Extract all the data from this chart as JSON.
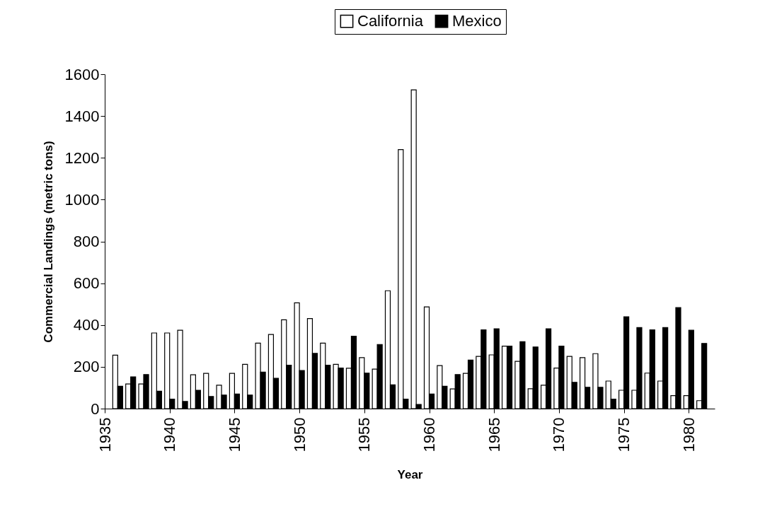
{
  "chart_data": {
    "type": "bar",
    "xlabel": "Year",
    "ylabel": "Commercial Landings (metric tons)",
    "x": [
      1936,
      1937,
      1938,
      1939,
      1940,
      1941,
      1942,
      1943,
      1944,
      1945,
      1946,
      1947,
      1948,
      1949,
      1950,
      1951,
      1952,
      1953,
      1954,
      1955,
      1956,
      1957,
      1958,
      1959,
      1960,
      1961,
      1962,
      1963,
      1964,
      1965,
      1966,
      1967,
      1968,
      1969,
      1970,
      1971,
      1972,
      1973,
      1974,
      1975,
      1976,
      1977,
      1978,
      1979,
      1980,
      1981
    ],
    "series": [
      {
        "name": "California",
        "color": "#ffffff",
        "values": [
          256,
          118,
          118,
          362,
          362,
          375,
          162,
          169,
          112,
          169,
          212,
          313,
          355,
          425,
          506,
          431,
          313,
          212,
          193,
          244,
          189,
          564,
          1239,
          1525,
          487,
          206,
          94,
          169,
          250,
          257,
          299,
          226,
          95,
          112,
          194,
          250,
          244,
          263,
          132,
          88,
          88,
          170,
          132,
          62,
          62,
          38
        ]
      },
      {
        "name": "Mexico",
        "color": "#000000",
        "values": [
          107,
          152,
          163,
          83,
          45,
          34,
          88,
          58,
          65,
          70,
          65,
          175,
          145,
          208,
          182,
          264,
          208,
          194,
          346,
          170,
          307,
          114,
          45,
          20,
          70,
          107,
          163,
          232,
          377,
          382,
          299,
          320,
          295,
          382,
          299,
          126,
          102,
          102,
          45,
          439,
          388,
          377,
          388,
          483,
          375,
          312
        ]
      }
    ],
    "xlim": [
      1935,
      1982
    ],
    "xticks": [
      1935,
      1940,
      1945,
      1950,
      1955,
      1960,
      1965,
      1970,
      1975,
      1980
    ],
    "ylim": [
      0,
      1600
    ],
    "yticks": [
      0,
      200,
      400,
      600,
      800,
      1000,
      1200,
      1400,
      1600
    ],
    "grid": false,
    "legend": "top"
  }
}
